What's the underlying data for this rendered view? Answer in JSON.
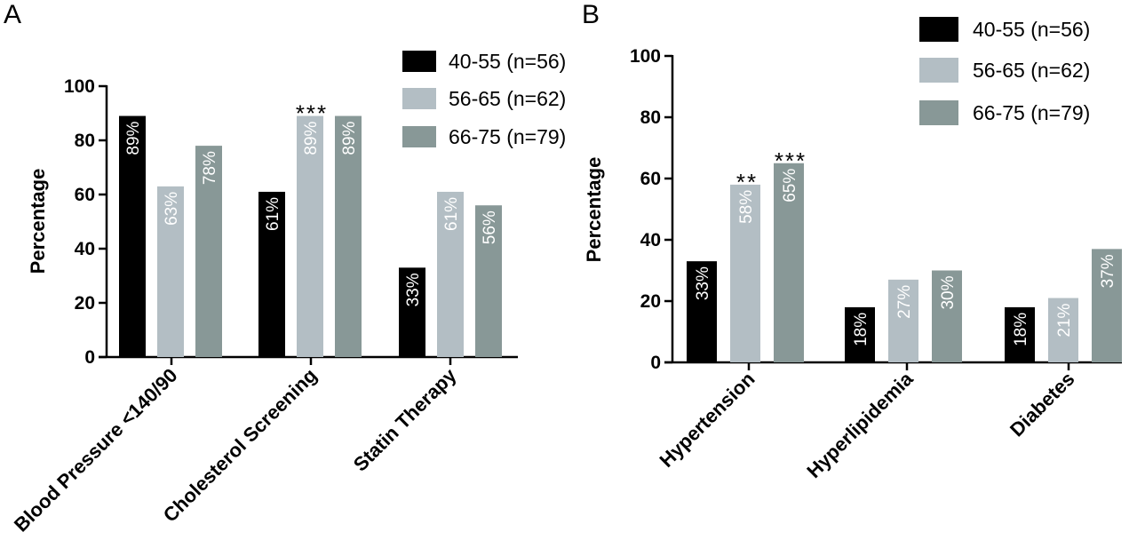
{
  "chart_data": [
    {
      "type": "bar",
      "panel": "A",
      "ylabel": "Percentage",
      "ylim": [
        0,
        100
      ],
      "yticks": [
        0,
        20,
        40,
        60,
        80,
        100
      ],
      "categories": [
        "Blood Pressure <140/90",
        "Cholesterol Screening",
        "Statin Therapy"
      ],
      "series": [
        {
          "name": "40-55 (n=56)",
          "color": "#000000",
          "values": [
            89,
            61,
            33
          ],
          "labels": [
            "89%",
            "61%",
            "33%"
          ]
        },
        {
          "name": "56-65 (n=62)",
          "color": "#b3bec4",
          "values": [
            63,
            89,
            61
          ],
          "labels": [
            "63%",
            "89%",
            "61%"
          ]
        },
        {
          "name": "66-75 (n=79)",
          "color": "#889897",
          "values": [
            78,
            89,
            56
          ],
          "labels": [
            "78%",
            "89%",
            "56%"
          ]
        }
      ],
      "annotations": [
        {
          "category": 1,
          "series": 1,
          "text": "***"
        }
      ],
      "legend": "top-right"
    },
    {
      "type": "bar",
      "panel": "B",
      "ylabel": "Percentage",
      "ylim": [
        0,
        100
      ],
      "yticks": [
        0,
        20,
        40,
        60,
        80,
        100
      ],
      "categories": [
        "Hypertension",
        "Hyperlipidemia",
        "Diabetes"
      ],
      "series": [
        {
          "name": "40-55 (n=56)",
          "color": "#000000",
          "values": [
            33,
            18,
            18
          ],
          "labels": [
            "33%",
            "18%",
            "18%"
          ]
        },
        {
          "name": "56-65 (n=62)",
          "color": "#b3bec4",
          "values": [
            58,
            27,
            21
          ],
          "labels": [
            "58%",
            "27%",
            "21%"
          ]
        },
        {
          "name": "66-75 (n=79)",
          "color": "#889897",
          "values": [
            65,
            30,
            37
          ],
          "labels": [
            "65%",
            "30%",
            "37%"
          ]
        }
      ],
      "annotations": [
        {
          "category": 0,
          "series": 1,
          "text": "**"
        },
        {
          "category": 0,
          "series": 2,
          "text": "***"
        }
      ],
      "legend": "top-right"
    }
  ]
}
